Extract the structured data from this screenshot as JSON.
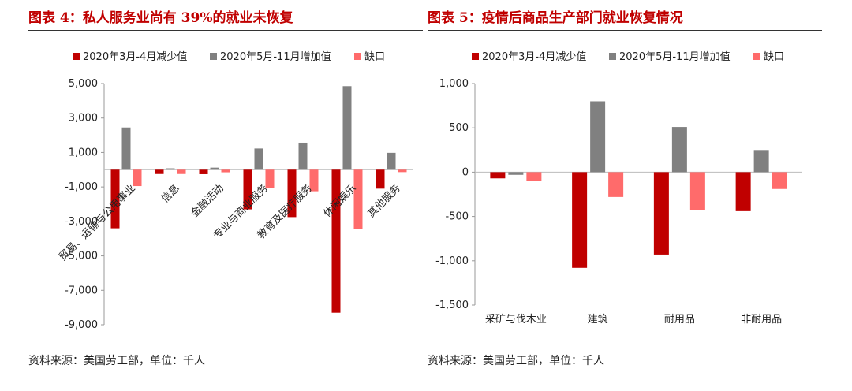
{
  "legend": {
    "series": [
      {
        "name": "2020年3月-4月减少值",
        "color": "#c00000"
      },
      {
        "name": "2020年5月-11月增加值",
        "color": "#808080"
      },
      {
        "name": "缺口",
        "color": "#ff6b6b"
      }
    ]
  },
  "left": {
    "title": "图表 4：私人服务业尚有 39%的就业未恢复",
    "source": "资料来源：美国劳工部，单位：千人"
  },
  "right": {
    "title": "图表 5：疫情后商品生产部门就业恢复情况",
    "source": "资料来源：美国劳工部，单位：千人"
  },
  "chart_data": [
    {
      "type": "bar",
      "title": "私人服务业尚有 39%的就业未恢复",
      "categories": [
        "贸易、运输与公用事业",
        "信息",
        "金融活动",
        "专业与商业服务",
        "教育及医疗服务",
        "休闲娱乐",
        "其他服务"
      ],
      "series": [
        {
          "name": "2020年3月-4月减少值",
          "values": [
            -3400,
            -250,
            -260,
            -2300,
            -2750,
            -8300,
            -1100
          ]
        },
        {
          "name": "2020年5月-11月增加值",
          "values": [
            2450,
            80,
            120,
            1230,
            1570,
            4850,
            980
          ]
        },
        {
          "name": "缺口",
          "values": [
            -950,
            -250,
            -150,
            -1080,
            -1250,
            -3450,
            -140
          ]
        }
      ],
      "ylim": [
        -9000,
        5000
      ],
      "yticks": [
        5000,
        3000,
        1000,
        -1000,
        -3000,
        -5000,
        -7000,
        -9000
      ],
      "ytick_labels": [
        "5,000",
        "3,000",
        "1,000",
        "-1,000",
        "-3,000",
        "-5,000",
        "-7,000",
        "-9,000"
      ],
      "xlabel": "",
      "ylabel": ""
    },
    {
      "type": "bar",
      "title": "疫情后商品生产部门就业恢复情况",
      "categories": [
        "采矿与伐木业",
        "建筑",
        "耐用品",
        "非耐用品"
      ],
      "series": [
        {
          "name": "2020年3月-4月减少值",
          "values": [
            -70,
            -1080,
            -930,
            -440
          ]
        },
        {
          "name": "2020年5月-11月增加值",
          "values": [
            -30,
            800,
            510,
            250
          ]
        },
        {
          "name": "缺口",
          "values": [
            -100,
            -280,
            -430,
            -190
          ]
        }
      ],
      "ylim": [
        -1500,
        1000
      ],
      "yticks": [
        1000,
        500,
        0,
        -500,
        -1000,
        -1500
      ],
      "ytick_labels": [
        "1,000",
        "500",
        "0",
        "-500",
        "-1,000",
        "-1,500"
      ],
      "xlabel": "",
      "ylabel": ""
    }
  ]
}
